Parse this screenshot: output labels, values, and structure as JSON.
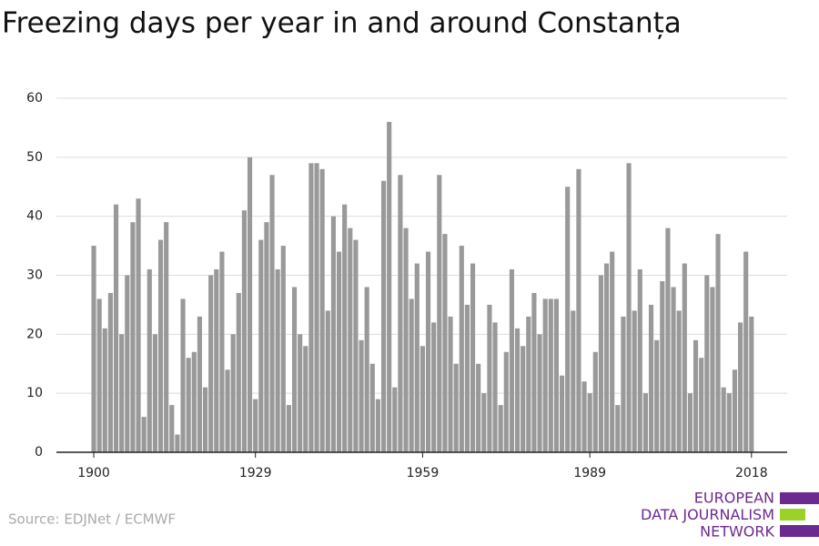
{
  "chart_data": {
    "type": "bar",
    "title": "Freezing days per year in and around Constanța",
    "source": "Source: EDJNet / ECMWF",
    "logo": [
      "EUROPEAN",
      "DATA JOURNALISM",
      "NETWORK"
    ],
    "color": "#999999",
    "x": [
      1900,
      1901,
      1902,
      1903,
      1904,
      1905,
      1906,
      1907,
      1908,
      1909,
      1910,
      1911,
      1912,
      1913,
      1914,
      1915,
      1916,
      1917,
      1918,
      1919,
      1920,
      1921,
      1922,
      1923,
      1924,
      1925,
      1926,
      1927,
      1928,
      1929,
      1930,
      1931,
      1932,
      1933,
      1934,
      1935,
      1936,
      1937,
      1938,
      1939,
      1940,
      1941,
      1942,
      1943,
      1944,
      1945,
      1946,
      1947,
      1948,
      1949,
      1950,
      1951,
      1952,
      1953,
      1954,
      1955,
      1956,
      1957,
      1958,
      1959,
      1960,
      1961,
      1962,
      1963,
      1964,
      1965,
      1966,
      1967,
      1968,
      1969,
      1970,
      1971,
      1972,
      1973,
      1974,
      1975,
      1976,
      1977,
      1978,
      1979,
      1980,
      1981,
      1982,
      1983,
      1984,
      1985,
      1986,
      1987,
      1988,
      1989,
      1990,
      1991,
      1992,
      1993,
      1994,
      1995,
      1996,
      1997,
      1998,
      1999,
      2000,
      2001,
      2002,
      2003,
      2004,
      2005,
      2006,
      2007,
      2008,
      2009,
      2010,
      2011,
      2012,
      2013,
      2014,
      2015,
      2016,
      2017,
      2018
    ],
    "values": [
      35,
      26,
      21,
      27,
      42,
      20,
      30,
      39,
      43,
      6,
      31,
      20,
      36,
      39,
      8,
      3,
      26,
      16,
      17,
      23,
      11,
      30,
      31,
      34,
      14,
      20,
      27,
      41,
      50,
      9,
      36,
      39,
      47,
      31,
      35,
      8,
      28,
      20,
      18,
      49,
      49,
      48,
      24,
      40,
      34,
      42,
      38,
      36,
      19,
      28,
      15,
      9,
      46,
      56,
      11,
      47,
      38,
      26,
      32,
      18,
      34,
      22,
      47,
      37,
      23,
      15,
      35,
      25,
      32,
      15,
      10,
      25,
      22,
      8,
      17,
      31,
      21,
      18,
      23,
      27,
      20,
      26,
      26,
      26,
      13,
      45,
      24,
      48,
      12,
      10,
      17,
      30,
      32,
      34,
      8,
      23,
      49,
      24,
      31,
      10,
      25,
      19,
      29,
      38,
      28,
      24,
      32,
      10,
      19,
      16,
      30,
      28,
      37,
      11,
      10,
      14,
      22,
      34,
      23
    ],
    "xlim": [
      1893.3,
      2024.4
    ],
    "xticks": [
      1900,
      1929,
      1959,
      1989,
      2018
    ],
    "ylim": [
      0,
      60
    ],
    "yticks": [
      0,
      10,
      20,
      30,
      40,
      50,
      60
    ],
    "grid": true
  }
}
